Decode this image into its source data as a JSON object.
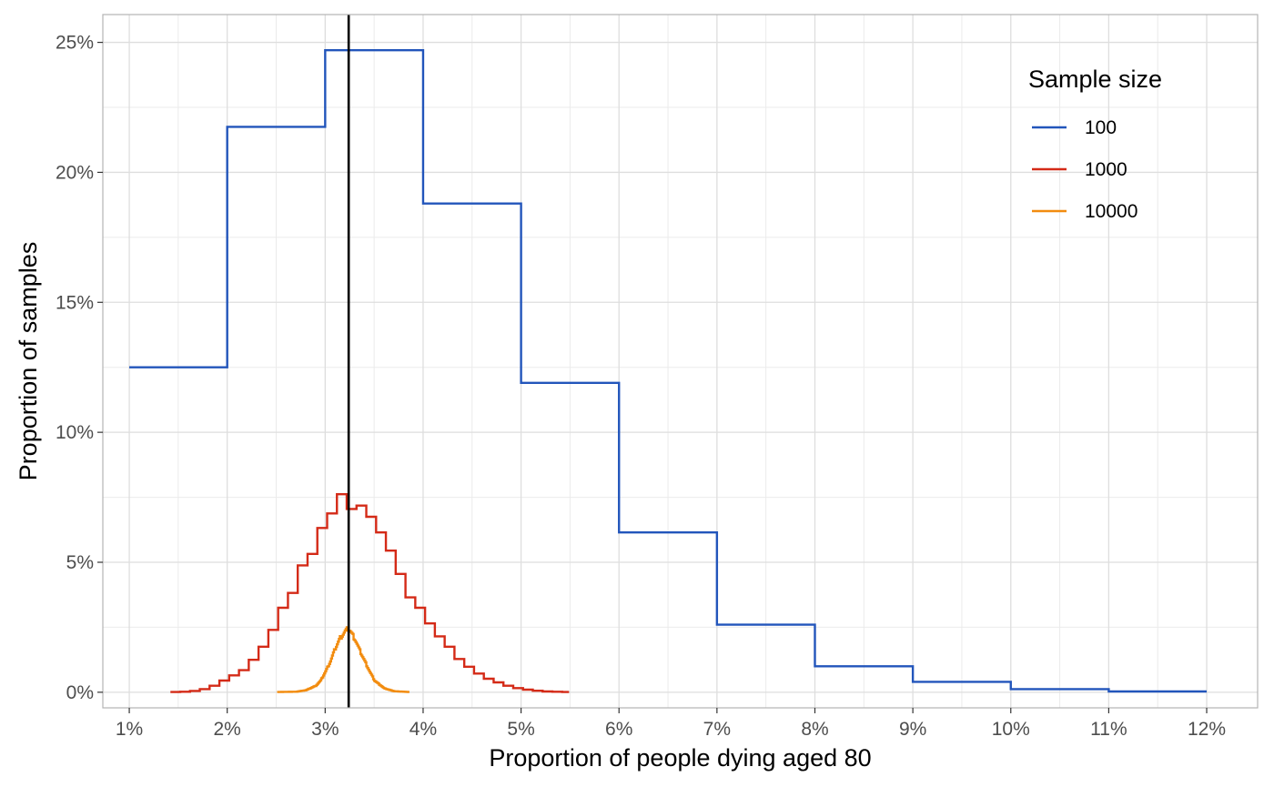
{
  "chart_data": {
    "type": "line",
    "subtype": "step-histogram",
    "xlabel": "Proportion of people dying aged 80",
    "ylabel": "Proportion of samples",
    "xlim": [
      0.0073,
      0.1252
    ],
    "ylim": [
      -0.006,
      0.2607
    ],
    "x_ticks": [
      0.01,
      0.02,
      0.03,
      0.04,
      0.05,
      0.06,
      0.07,
      0.08,
      0.09,
      0.1,
      0.11,
      0.12
    ],
    "x_tick_labels": [
      "1%",
      "2%",
      "3%",
      "4%",
      "5%",
      "6%",
      "7%",
      "8%",
      "9%",
      "10%",
      "11%",
      "12%"
    ],
    "y_ticks": [
      0,
      0.05,
      0.1,
      0.15,
      0.2,
      0.25
    ],
    "y_tick_labels": [
      "0%",
      "5%",
      "10%",
      "15%",
      "20%",
      "25%"
    ],
    "grid": true,
    "reference_line": {
      "x": 0.0324,
      "color": "#000000"
    },
    "legend": {
      "title": "Sample size",
      "position": "top-right",
      "entries": [
        {
          "label": "100",
          "color": "#2255BB"
        },
        {
          "label": "1000",
          "color": "#D42A17"
        },
        {
          "label": "10000",
          "color": "#F28C0F"
        }
      ]
    },
    "series": [
      {
        "name": "100",
        "color": "#2255BB",
        "step_width": 0.01,
        "x_start": [
          0.01,
          0.02,
          0.03,
          0.04,
          0.05,
          0.06,
          0.07,
          0.08,
          0.09,
          0.1,
          0.11
        ],
        "values": [
          0.125,
          0.2175,
          0.247,
          0.188,
          0.119,
          0.0615,
          0.026,
          0.01,
          0.004,
          0.0012,
          0.0003
        ],
        "x_end": 0.12,
        "end_value": 0.0003
      },
      {
        "name": "1000",
        "color": "#D42A17",
        "step_width": 0.001,
        "x_start": [
          0.0142,
          0.0152,
          0.0162,
          0.0172,
          0.0182,
          0.0192,
          0.0202,
          0.0212,
          0.0222,
          0.0232,
          0.0242,
          0.0252,
          0.0262,
          0.0272,
          0.0282,
          0.0292,
          0.0302,
          0.0312,
          0.0322,
          0.0332,
          0.0342,
          0.0352,
          0.0362,
          0.0372,
          0.0382,
          0.0392,
          0.0402,
          0.0412,
          0.0422,
          0.0432,
          0.0442,
          0.0452,
          0.0462,
          0.0472,
          0.0482,
          0.0492,
          0.0502,
          0.0512,
          0.0522,
          0.0532,
          0.0542
        ],
        "values": [
          0.0001,
          0.0002,
          0.0005,
          0.0012,
          0.0025,
          0.0045,
          0.0065,
          0.0085,
          0.0125,
          0.0175,
          0.024,
          0.0325,
          0.0382,
          0.0488,
          0.0532,
          0.0632,
          0.0688,
          0.0762,
          0.0705,
          0.0718,
          0.0675,
          0.0615,
          0.0545,
          0.0455,
          0.0365,
          0.0325,
          0.0265,
          0.0215,
          0.0175,
          0.0128,
          0.0098,
          0.0072,
          0.0052,
          0.0038,
          0.0025,
          0.0016,
          0.001,
          0.0006,
          0.0003,
          0.0002,
          0.0001
        ],
        "x_end": 0.0549,
        "end_value": 0.0001
      },
      {
        "name": "10000",
        "color": "#F28C0F",
        "step_width": 0.0001,
        "x": [
          0.0251,
          0.027,
          0.028,
          0.029,
          0.0295,
          0.03,
          0.0305,
          0.031,
          0.0315,
          0.032,
          0.0323,
          0.0325,
          0.033,
          0.0335,
          0.034,
          0.0345,
          0.035,
          0.036,
          0.037,
          0.0385
        ],
        "values": [
          0.0001,
          0.0002,
          0.0008,
          0.0025,
          0.0045,
          0.008,
          0.012,
          0.017,
          0.021,
          0.0235,
          0.0245,
          0.0238,
          0.0205,
          0.016,
          0.012,
          0.008,
          0.0045,
          0.0015,
          0.0004,
          0.0001
        ]
      }
    ]
  }
}
